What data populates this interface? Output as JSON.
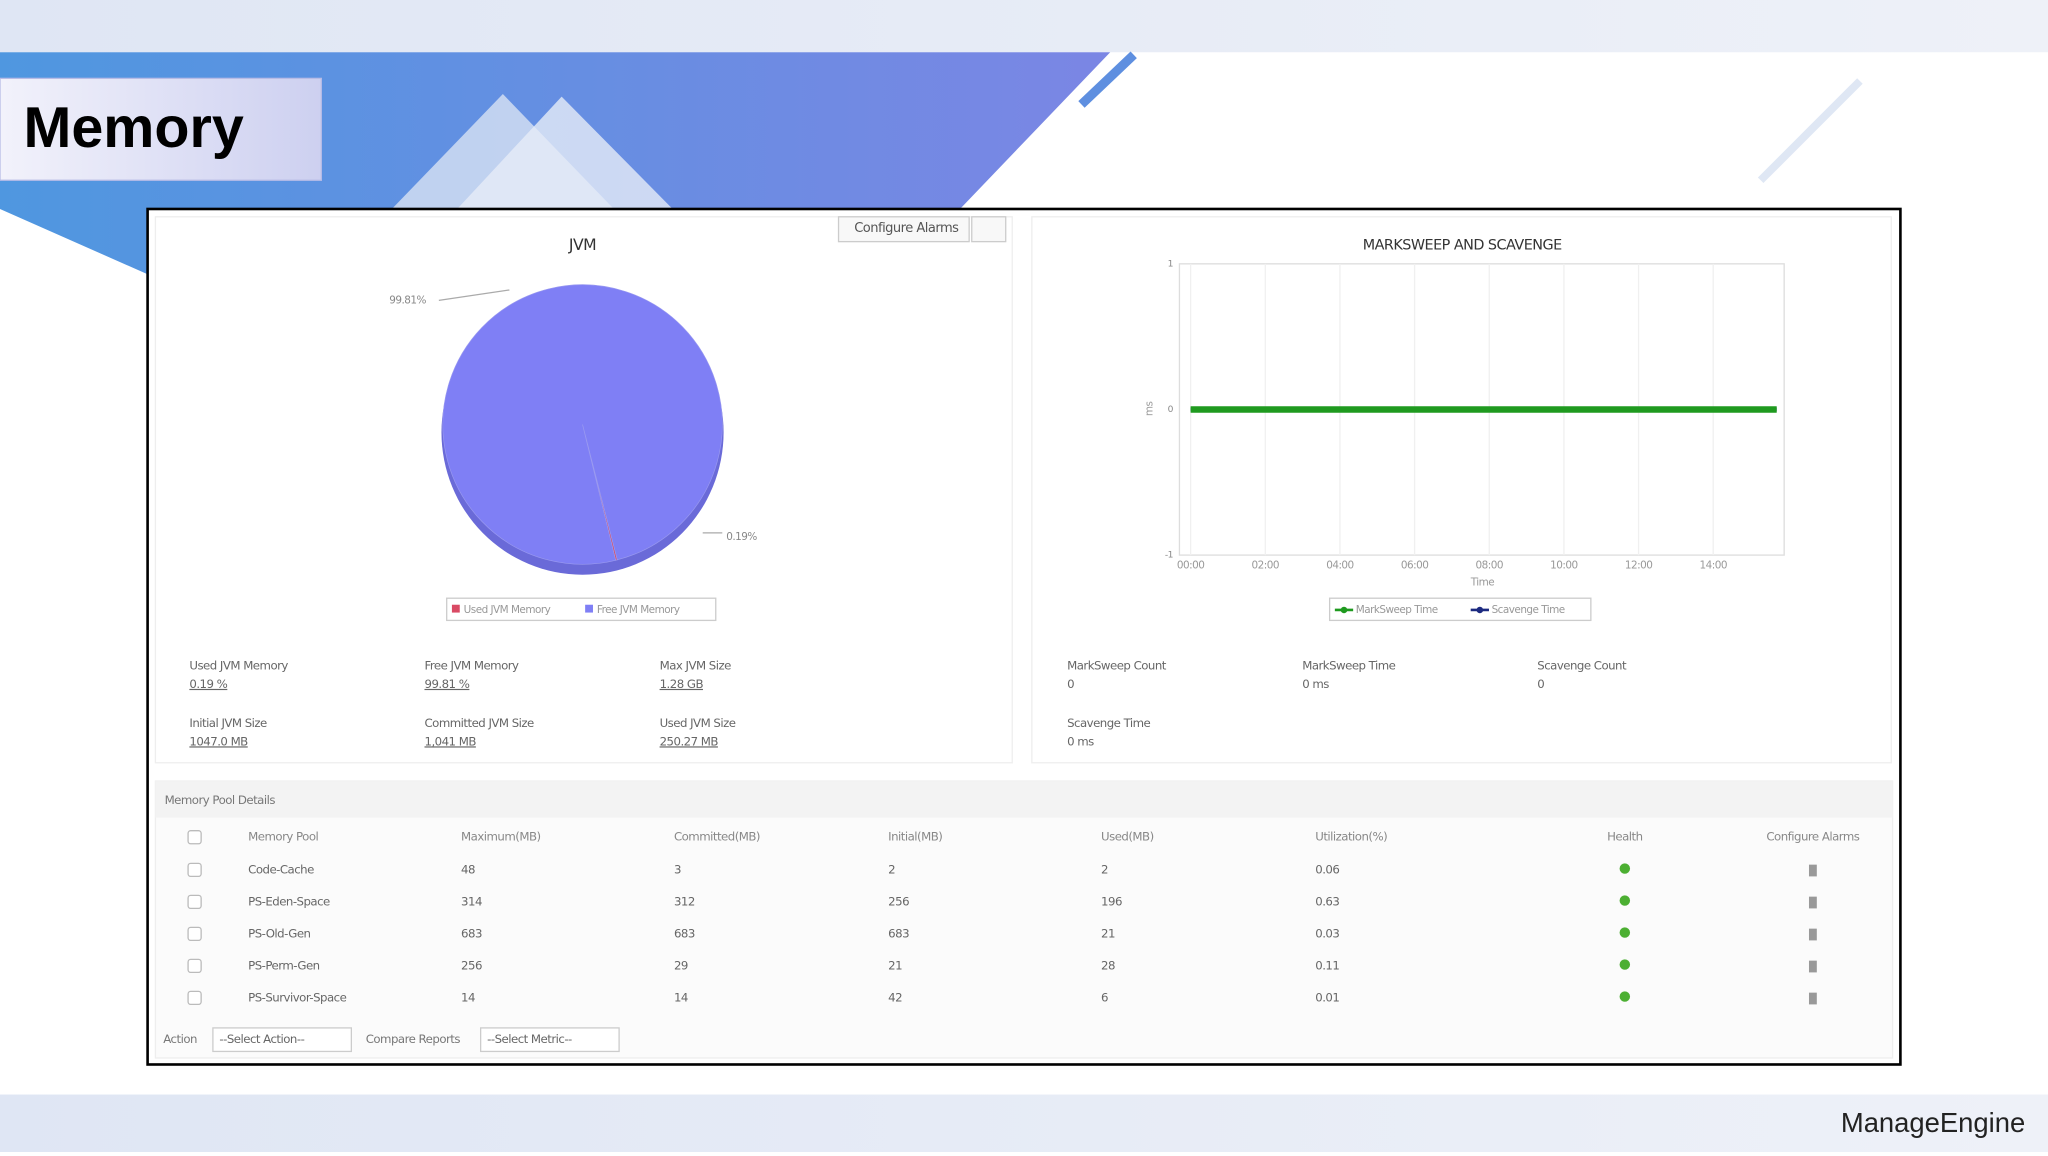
{
  "title": "Memory",
  "toolbar": {
    "configure": "Configure Alarms"
  },
  "jvm_chart": {
    "type": "pie",
    "title": "JVM",
    "categories": [
      "Used JVM Memory",
      "Free JVM Memory"
    ],
    "values": [
      0.19,
      99.81
    ],
    "value_labels": [
      "0.19%",
      "99.81%"
    ],
    "colors": [
      "#d94a64",
      "#7f7ff5"
    ]
  },
  "jvm_stats": [
    {
      "label": "Used JVM Memory",
      "value": "0.19 %"
    },
    {
      "label": "Free JVM Memory",
      "value": "99.81 %"
    },
    {
      "label": "Max JVM Size",
      "value": "1.28 GB"
    },
    {
      "label": "Initial JVM Size",
      "value": "1047.0 MB"
    },
    {
      "label": "Committed JVM Size",
      "value": "1,041 MB"
    },
    {
      "label": "Used JVM Size",
      "value": "250.27 MB"
    }
  ],
  "gc_chart": {
    "type": "line",
    "title": "MARKSWEEP AND SCAVENGE",
    "ylabel": "ms",
    "xlabel": "Time",
    "xlim": [
      -0.3,
      15.9
    ],
    "xticks": [
      {
        "value": 0,
        "label": "00:00"
      },
      {
        "value": 2,
        "label": "02:00"
      },
      {
        "value": 4,
        "label": "04:00"
      },
      {
        "value": 6,
        "label": "06:00"
      },
      {
        "value": 8,
        "label": "08:00"
      },
      {
        "value": 10,
        "label": "10:00"
      },
      {
        "value": 12,
        "label": "12:00"
      },
      {
        "value": 14,
        "label": "14:00"
      }
    ],
    "ylim": [
      -1,
      1
    ],
    "yticks": [
      -1,
      0,
      1
    ],
    "grid": true,
    "x": [
      0,
      4,
      8,
      12,
      15.7
    ],
    "series": [
      {
        "name": "MarkSweep Time",
        "color": "#1f9a1f",
        "values": [
          0,
          0,
          0,
          0,
          0
        ]
      },
      {
        "name": "Scavenge Time",
        "color": "#1c2a80",
        "values": [
          0,
          0,
          0,
          0,
          0
        ]
      }
    ]
  },
  "gc_stats": [
    {
      "label": "MarkSweep Count",
      "value": "0"
    },
    {
      "label": "MarkSweep Time",
      "value": "0 ms"
    },
    {
      "label": "Scavenge Count",
      "value": "0"
    },
    {
      "label": "Scavenge Time",
      "value": "0 ms"
    }
  ],
  "table": {
    "title": "Memory Pool Details",
    "headers": [
      "Memory Pool",
      "Maximum(MB)",
      "Committed(MB)",
      "Initial(MB)",
      "Used(MB)",
      "Utilization(%)",
      "Health",
      "Configure Alarms"
    ],
    "rows": [
      [
        "Code-Cache",
        "48",
        "3",
        "2",
        "2",
        "0.06"
      ],
      [
        "PS-Eden-Space",
        "314",
        "312",
        "256",
        "196",
        "0.63"
      ],
      [
        "PS-Old-Gen",
        "683",
        "683",
        "683",
        "21",
        "0.03"
      ],
      [
        "PS-Perm-Gen",
        "256",
        "29",
        "21",
        "28",
        "0.11"
      ],
      [
        "PS-Survivor-Space",
        "14",
        "14",
        "42",
        "6",
        "0.01"
      ]
    ]
  },
  "footer": {
    "action": "Action",
    "select_action": "--Select Action--",
    "compare": "Compare Reports",
    "select_metric": "--Select Metric--"
  },
  "brand": "ManageEngine"
}
